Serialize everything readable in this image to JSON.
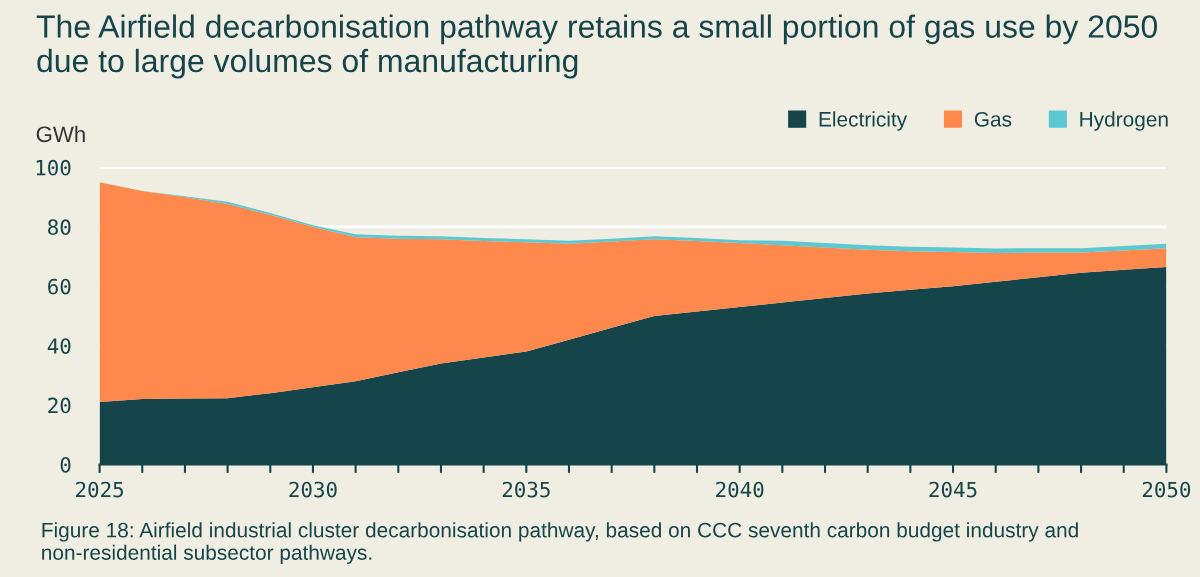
{
  "chart_data": {
    "type": "area",
    "stacked": true,
    "title": "The Airfield decarbonisation pathway retains a small portion of gas use by 2050 due to large volumes of manufacturing",
    "ylabel": "GWh",
    "x": [
      2025,
      2026,
      2027,
      2028,
      2029,
      2030,
      2031,
      2032,
      2033,
      2034,
      2035,
      2036,
      2037,
      2038,
      2039,
      2040,
      2041,
      2042,
      2043,
      2044,
      2045,
      2046,
      2047,
      2048,
      2049,
      2050
    ],
    "series": [
      {
        "name": "Electricity",
        "color": "#15444a",
        "values": [
          21,
          22,
          22.2,
          22.3,
          24,
          26,
          28,
          31,
          34,
          36,
          38,
          42,
          46,
          50,
          51.5,
          53,
          54.5,
          56,
          57.5,
          58.8,
          60,
          61.5,
          63,
          64.5,
          65.5,
          66.5
        ]
      },
      {
        "name": "Gas",
        "color": "#ff884d",
        "values": [
          74,
          70,
          67.8,
          65.4,
          60,
          54,
          48.5,
          45,
          41.8,
          39.2,
          36.8,
          32.3,
          29,
          25.8,
          23.7,
          21.5,
          19.3,
          17,
          14.8,
          13,
          11.5,
          9.7,
          8.3,
          6.8,
          6.5,
          6.3
        ]
      },
      {
        "name": "Hydrogen",
        "color": "#5bc8d2",
        "values": [
          0,
          0,
          0.3,
          0.7,
          0.6,
          0.5,
          1,
          1,
          1,
          1,
          1,
          1,
          1,
          1,
          1,
          1,
          1.5,
          1.5,
          1.5,
          1.5,
          1.5,
          1.5,
          1.5,
          1.5,
          1.5,
          1.5
        ]
      }
    ],
    "xlim": [
      2025,
      2050
    ],
    "xticks": [
      2025,
      {
        "value": 2026,
        "label": null
      },
      {
        "value": 2027,
        "label": null
      },
      {
        "value": 2028,
        "label": null
      },
      {
        "value": 2029,
        "label": null
      },
      2030,
      {
        "value": 2031,
        "label": null
      },
      {
        "value": 2032,
        "label": null
      },
      {
        "value": 2033,
        "label": null
      },
      {
        "value": 2034,
        "label": null
      },
      2035,
      {
        "value": 2036,
        "label": null
      },
      {
        "value": 2037,
        "label": null
      },
      {
        "value": 2038,
        "label": null
      },
      {
        "value": 2039,
        "label": null
      },
      2040,
      {
        "value": 2041,
        "label": null
      },
      {
        "value": 2042,
        "label": null
      },
      {
        "value": 2043,
        "label": null
      },
      {
        "value": 2044,
        "label": null
      },
      2045,
      {
        "value": 2046,
        "label": null
      },
      {
        "value": 2047,
        "label": null
      },
      {
        "value": 2048,
        "label": null
      },
      {
        "value": 2049,
        "label": null
      },
      2050
    ],
    "ylim": [
      0,
      100
    ],
    "yticks": [
      0,
      20,
      40,
      60,
      80,
      100
    ],
    "grid": "y",
    "legend": "top right",
    "annotations": [
      "Figure 18: Airfield industrial cluster decarbonisation pathway, based on CCC seventh carbon budget industry and non-residential subsector pathways."
    ]
  }
}
